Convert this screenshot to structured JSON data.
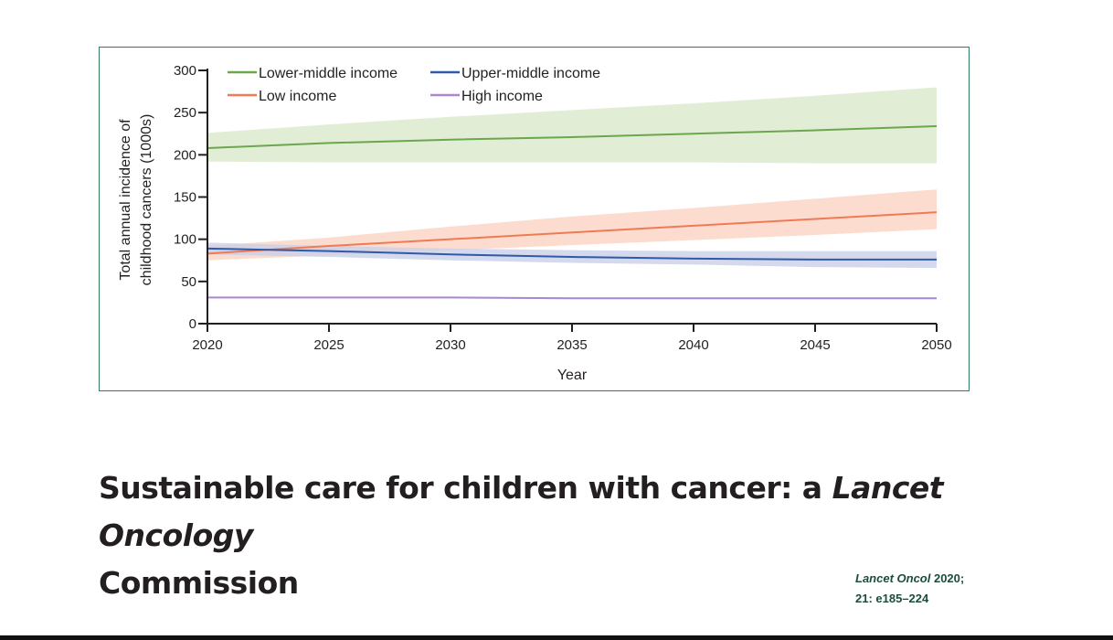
{
  "chart_data": {
    "type": "line",
    "x": [
      2020,
      2025,
      2030,
      2035,
      2040,
      2045,
      2050
    ],
    "xlabel": "Year",
    "ylabel_lines": [
      "Total annual incidence of",
      "childhood cancers (1000s)"
    ],
    "xlim": [
      2020,
      2050
    ],
    "ylim": [
      0,
      300
    ],
    "xticks": [
      "2020",
      "2025",
      "2030",
      "2035",
      "2040",
      "2045",
      "2050"
    ],
    "yticks": [
      "0",
      "50",
      "100",
      "150",
      "200",
      "250",
      "300"
    ],
    "grid": false,
    "legend_placement": "top-left",
    "series": [
      {
        "name": "Lower-middle income",
        "color": "#6aa84f",
        "band_color": "#dbe8cc",
        "values": [
          208,
          214,
          218,
          221,
          225,
          229,
          234
        ],
        "lower": [
          192,
          191,
          191,
          191,
          191,
          190,
          190
        ],
        "upper": [
          226,
          236,
          245,
          253,
          261,
          270,
          280
        ]
      },
      {
        "name": "Upper-middle income",
        "color": "#2f5aa8",
        "band_color": "#c9cfe9",
        "values": [
          89,
          86,
          82,
          79,
          77,
          76,
          76
        ],
        "lower": [
          82,
          79,
          75,
          72,
          70,
          67,
          66
        ],
        "upper": [
          96,
          92,
          89,
          87,
          86,
          86,
          86
        ]
      },
      {
        "name": "Low income",
        "color": "#ef7b55",
        "band_color": "#fbd3c2",
        "values": [
          83,
          92,
          100,
          108,
          116,
          124,
          132
        ],
        "lower": [
          75,
          81,
          87,
          93,
          99,
          105,
          112
        ],
        "upper": [
          92,
          102,
          115,
          127,
          137,
          148,
          159
        ]
      },
      {
        "name": "High income",
        "color": "#a987d4",
        "band_color": "#e4d9f2",
        "values": [
          31,
          31,
          31,
          30,
          30,
          30,
          30
        ],
        "lower": [
          30,
          30,
          30,
          29,
          29,
          29,
          29
        ],
        "upper": [
          32,
          32,
          32,
          31,
          31,
          31,
          31
        ]
      }
    ],
    "legend": [
      {
        "name": "Lower-middle income",
        "color": "#6aa84f"
      },
      {
        "name": "Upper-middle income",
        "color": "#2f5aa8"
      },
      {
        "name": "Low income",
        "color": "#ef7b55"
      },
      {
        "name": "High income",
        "color": "#a987d4"
      }
    ]
  },
  "title": {
    "part1": "Sustainable care for children with cancer: a ",
    "italic": "Lancet Oncology",
    "part2": "Commission"
  },
  "citation": {
    "journal": "Lancet Oncol",
    "year": " 2020;",
    "volume": "21: e185–224"
  },
  "colors": {
    "frame": "#2e7d5b",
    "citation": "#1b4d3e",
    "axis": "#231f20"
  }
}
